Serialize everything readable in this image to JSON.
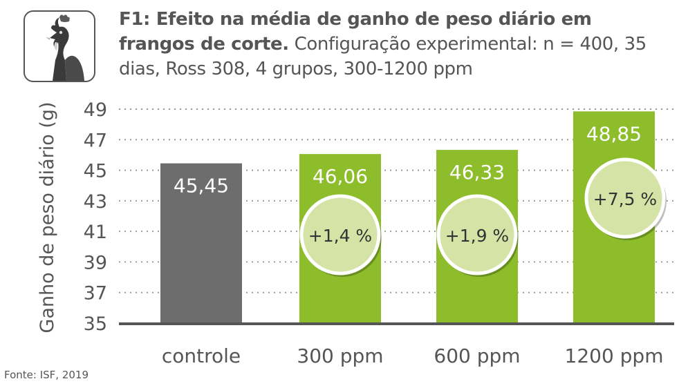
{
  "header": {
    "title_bold": "F1: Efeito na média de ganho de peso diário em frangos de corte.",
    "title_rest": "Configuração experimental: n = 400, 35 dias, Ross 308, 4 grupos, 300-1200 ppm",
    "logo_icon": "chicken-head-icon"
  },
  "source": "Fonte: ISF, 2019",
  "chart_data": {
    "type": "bar",
    "title": "F1: Efeito na média de ganho de peso diário em frangos de corte.",
    "subtitle": "Configuração experimental: n = 400, 35 dias, Ross 308, 4 grupos, 300-1200 ppm",
    "ylabel": "Ganho de peso diário (g)",
    "xlabel": "",
    "ylim": [
      35,
      49
    ],
    "yticks": [
      35,
      37,
      39,
      41,
      43,
      45,
      47,
      49
    ],
    "grid": true,
    "categories": [
      "controle",
      "300 ppm",
      "600 ppm",
      "1200 ppm"
    ],
    "values": [
      45.45,
      46.06,
      46.33,
      48.85
    ],
    "value_labels": [
      "45,45",
      "46,06",
      "46,33",
      "48,85"
    ],
    "change_labels": [
      "",
      "+1,4 %",
      "+1,9 %",
      "+7,5 %"
    ],
    "colors": {
      "control": "#6d6d6d",
      "treatment": "#8dbd2b",
      "badge_fill": "#d6e3a6",
      "badge_border": "#ffffff",
      "text": "#555555",
      "grid": "#9a9a9a",
      "axis": "#555555"
    }
  }
}
